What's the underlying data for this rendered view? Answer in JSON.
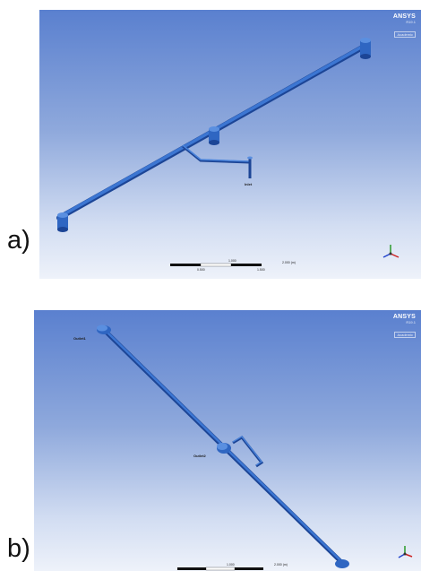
{
  "panels": [
    {
      "label": "a)",
      "logo": {
        "brand": "ANSYS",
        "version": "R19.1",
        "license": "Academic"
      },
      "boundary_labels": [
        "Inlet"
      ],
      "scale": {
        "mid": "1.000",
        "right": "2.000 (m)",
        "left_sub": "0.500",
        "right_sub": "1.500"
      }
    },
    {
      "label": "b)",
      "logo": {
        "brand": "ANSYS",
        "version": "R19.1",
        "license": "Academic"
      },
      "boundary_labels": [
        "Outlet1",
        "Outlet2"
      ],
      "scale": {
        "mid": "1.000",
        "right": "2.000 (m)",
        "left_sub": "",
        "right_sub": ""
      }
    }
  ],
  "colors": {
    "pipe": "#2f66c2",
    "pipe_dark": "#1c4596",
    "axis_x": "#cc2222",
    "axis_y": "#2a9a2a",
    "axis_z": "#2244cc"
  }
}
